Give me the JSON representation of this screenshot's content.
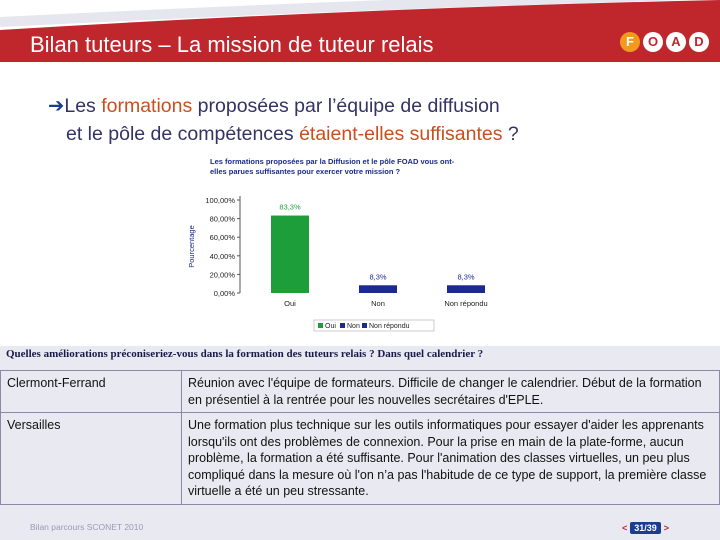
{
  "header": {
    "title": "Bilan tuteurs – La mission de tuteur relais",
    "logo_letters": [
      "F",
      "O",
      "A",
      "D"
    ],
    "color": "#c0272d"
  },
  "question": {
    "arrow": "➔",
    "part1": "Les ",
    "part2": "formations",
    "part3": " proposées par l’équipe de diffusion",
    "part4": "et le pôle de compétences ",
    "part5": "étaient-elles suffisantes",
    "part6": " ?"
  },
  "chart_data": {
    "type": "bar",
    "title": "Les formations proposées par la Diffusion et le pôle FOAD vous ont-elles parues suffisantes pour exercer votre mission ?",
    "title_lines": [
      "Les formations proposées par la Diffusion et le pôle FOAD vous ont-",
      "elles parues suffisantes pour exercer votre mission ?"
    ],
    "ylabel": "Pourcentage",
    "categories": [
      "Oui",
      "Non",
      "Non répondu"
    ],
    "values": [
      83.3,
      8.3,
      8.3
    ],
    "data_labels": [
      "83,3%",
      "8,3%",
      "8,3%"
    ],
    "colors": [
      "#1e9e3a",
      "#1a2a8f",
      "#1a2a8f"
    ],
    "ylim": [
      0,
      100
    ],
    "y_ticks": [
      0,
      20,
      40,
      60,
      80,
      100
    ],
    "y_tick_labels": [
      "0,00%",
      "20,00%",
      "40,00%",
      "60,00%",
      "80,00%",
      "100,00%"
    ],
    "legend": [
      "Oui",
      "Non",
      "Non répondu"
    ],
    "legend_colors": [
      "#1e9e3a",
      "#1a2a8f",
      "#1a2a8f"
    ],
    "legend_position": "bottom"
  },
  "panel": {
    "question": "Quelles améliorations préconiseriez-vous dans la formation des tuteurs relais ? Dans quel calendrier ?"
  },
  "responses": [
    {
      "city": "Clermont-Ferrand",
      "text": "Réunion avec l'équipe de formateurs. Difficile de changer le calendrier. Début de la formation en présentiel à la rentrée pour les nouvelles secrétaires d'EPLE."
    },
    {
      "city": "Versailles",
      "text": "Une formation plus technique sur les outils informatiques pour essayer d'aider les apprenants lorsqu'ils ont des problèmes de connexion. Pour la prise en main de la plate-forme, aucun problème, la formation a été suffisante. Pour l'animation des classes virtuelles, un peu plus compliqué dans la mesure où l'on n’a pas l'habitude de ce type de support, la première classe virtuelle a été un peu stressante."
    }
  ],
  "footer": {
    "left": "Bilan parcours SCONET 2010",
    "prev": "<",
    "next": ">",
    "page": "31/39"
  }
}
